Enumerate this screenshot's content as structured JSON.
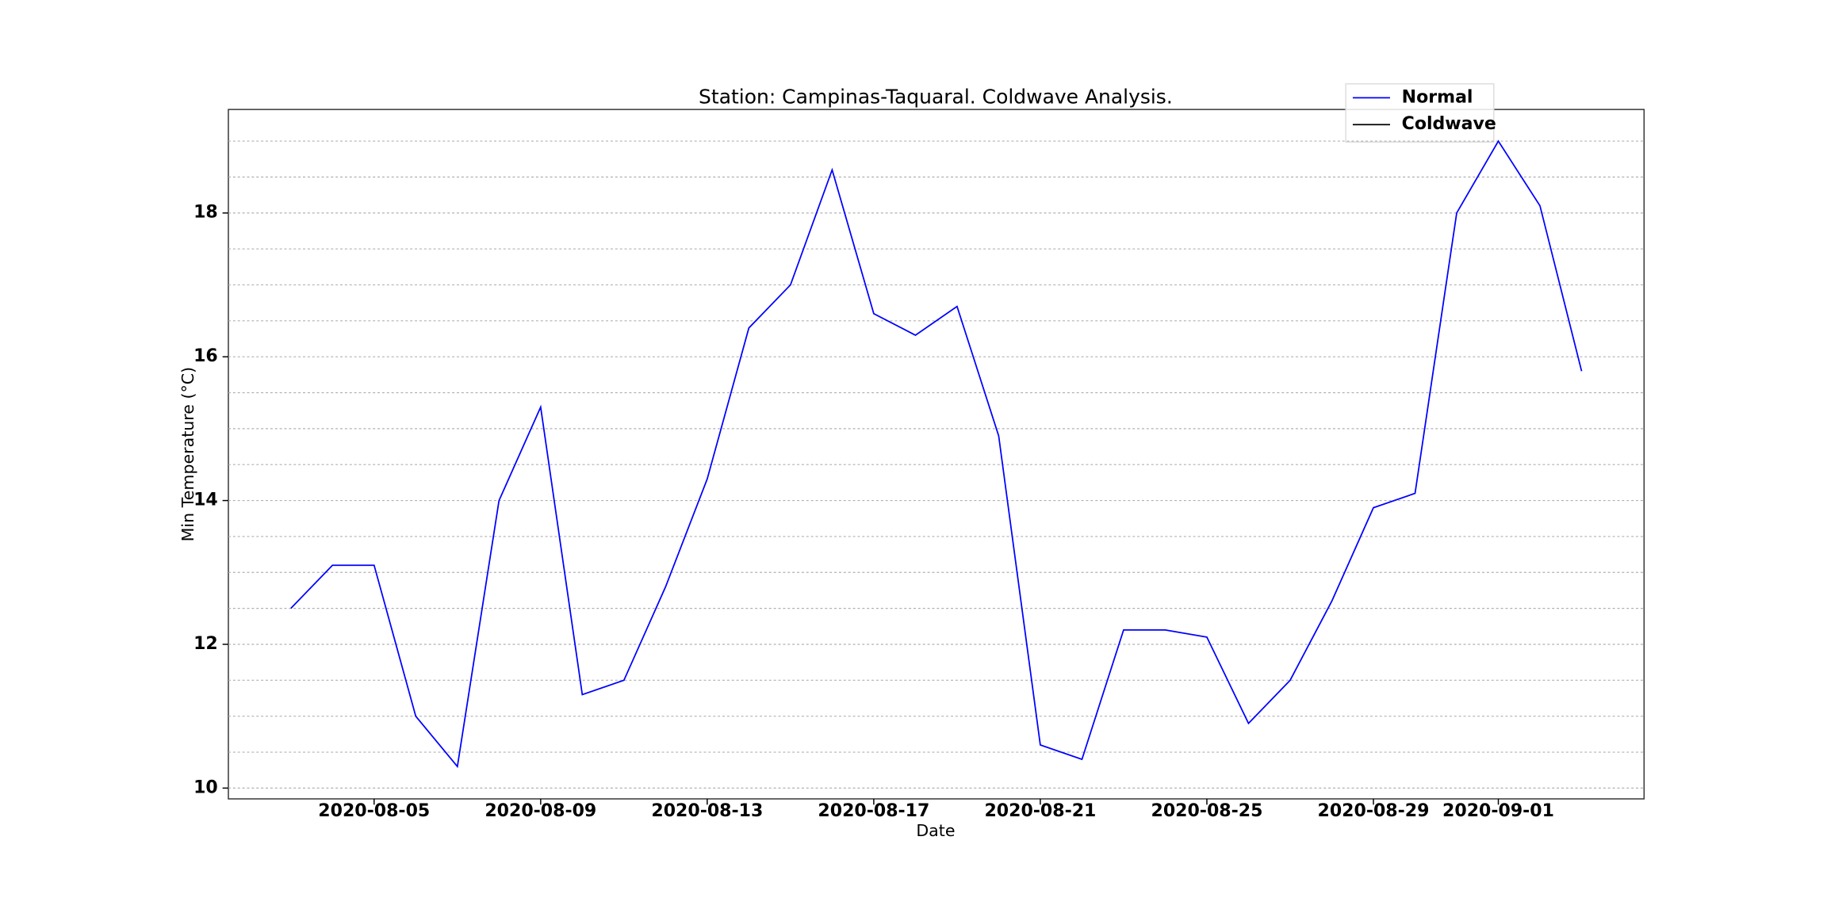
{
  "chart_data": {
    "type": "line",
    "title": "Station: Campinas-Taquaral. Coldwave Analysis.",
    "xlabel": "Date",
    "ylabel": "Min Temperature (°C)",
    "x": [
      "2020-08-03",
      "2020-08-04",
      "2020-08-05",
      "2020-08-06",
      "2020-08-07",
      "2020-08-08",
      "2020-08-09",
      "2020-08-10",
      "2020-08-11",
      "2020-08-12",
      "2020-08-13",
      "2020-08-14",
      "2020-08-15",
      "2020-08-16",
      "2020-08-17",
      "2020-08-18",
      "2020-08-19",
      "2020-08-20",
      "2020-08-21",
      "2020-08-22",
      "2020-08-23",
      "2020-08-24",
      "2020-08-25",
      "2020-08-26",
      "2020-08-27",
      "2020-08-28",
      "2020-08-29",
      "2020-08-30",
      "2020-08-31",
      "2020-09-01",
      "2020-09-02",
      "2020-09-03"
    ],
    "series": [
      {
        "name": "Normal",
        "color": "#0000ff",
        "values": [
          12.5,
          13.1,
          13.1,
          11.0,
          10.3,
          14.0,
          15.3,
          11.3,
          11.5,
          12.8,
          14.3,
          16.4,
          17.0,
          18.6,
          16.6,
          16.3,
          16.7,
          14.9,
          10.6,
          10.4,
          12.2,
          12.2,
          12.1,
          10.9,
          11.5,
          12.6,
          13.9,
          14.1,
          18.0,
          19.0,
          18.1,
          15.8
        ]
      },
      {
        "name": "Coldwave",
        "color": "#000000",
        "values": [
          null,
          null,
          null,
          null,
          null,
          null,
          null,
          null,
          null,
          null,
          null,
          null,
          null,
          null,
          null,
          null,
          null,
          null,
          null,
          null,
          null,
          null,
          null,
          null,
          null,
          null,
          null,
          null,
          null,
          null,
          null,
          null
        ]
      }
    ],
    "xlim": [
      "2020-08-01T12:00",
      "2020-09-04T12:00"
    ],
    "xticks": [
      "2020-08-05",
      "2020-08-09",
      "2020-08-13",
      "2020-08-17",
      "2020-08-21",
      "2020-08-25",
      "2020-08-29",
      "2020-09-01"
    ],
    "ylim": [
      9.85,
      19.44
    ],
    "yticks": [
      10,
      12,
      14,
      16,
      18
    ],
    "grid_yticks": [
      10,
      10.5,
      11,
      11.5,
      12,
      12.5,
      13,
      13.5,
      14,
      14.5,
      15,
      15.5,
      16,
      16.5,
      17,
      17.5,
      18,
      18.5,
      19
    ],
    "grid": true,
    "legend": "upper right"
  }
}
